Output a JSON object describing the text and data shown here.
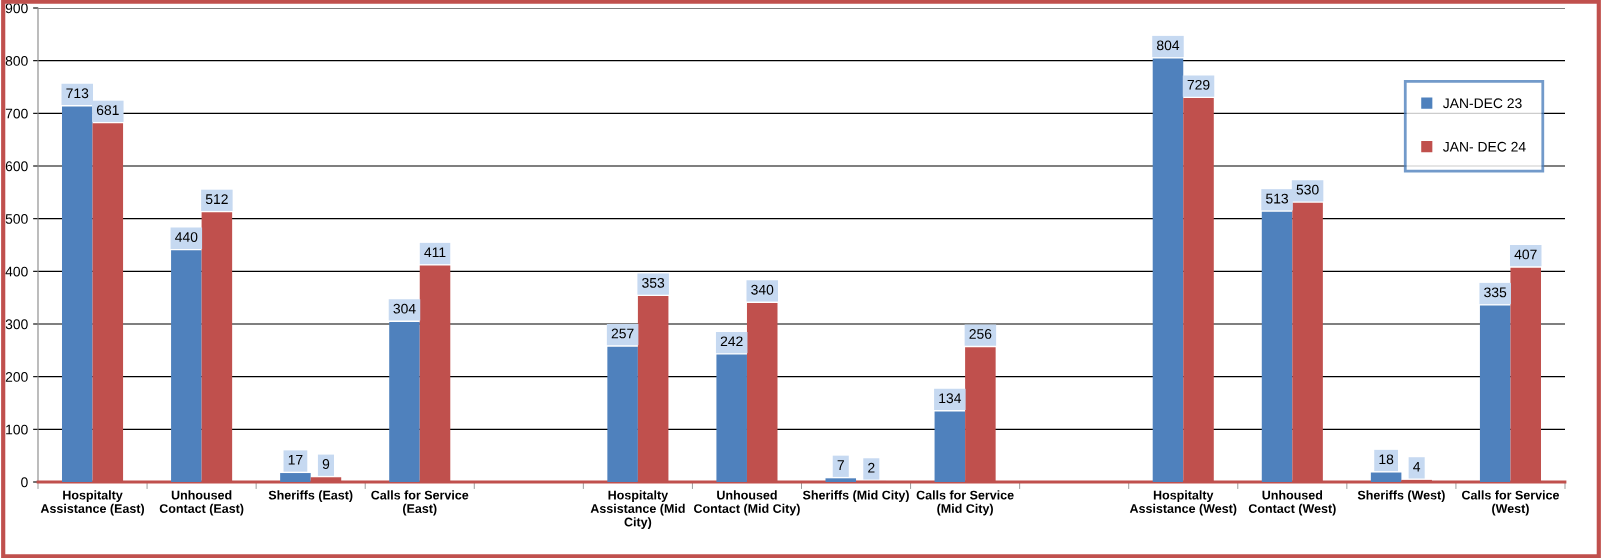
{
  "chart_data": {
    "type": "bar",
    "categories": [
      "Hospitalty\nAssistance (East)",
      "Unhoused\nContact (East)",
      "Sheriffs (East)",
      "Calls for Service\n(East)",
      null,
      "Hospitalty\nAssistance (Mid\nCity)",
      "Unhoused\nContact (Mid City)",
      "Sheriffs (Mid City)",
      "Calls for Service\n(Mid City)",
      null,
      "Hospitalty\nAssistance (West)",
      "Unhoused\nContact (West)",
      "Sheriffs (West)",
      "Calls for Service\n(West)"
    ],
    "series": [
      {
        "name": "JAN-DEC 23",
        "color": "#4f81bd",
        "values": [
          713,
          440,
          17,
          304,
          null,
          257,
          242,
          7,
          134,
          null,
          804,
          513,
          18,
          335
        ]
      },
      {
        "name": "JAN- DEC 24",
        "color": "#c0504d",
        "values": [
          681,
          512,
          9,
          411,
          null,
          353,
          340,
          2,
          256,
          null,
          729,
          530,
          4,
          407
        ]
      }
    ],
    "ylim": [
      0,
      900
    ],
    "yticks": [
      0,
      100,
      200,
      300,
      400,
      500,
      600,
      700,
      800,
      900
    ],
    "grid": "y",
    "legend": "top right",
    "data_labels": true
  }
}
